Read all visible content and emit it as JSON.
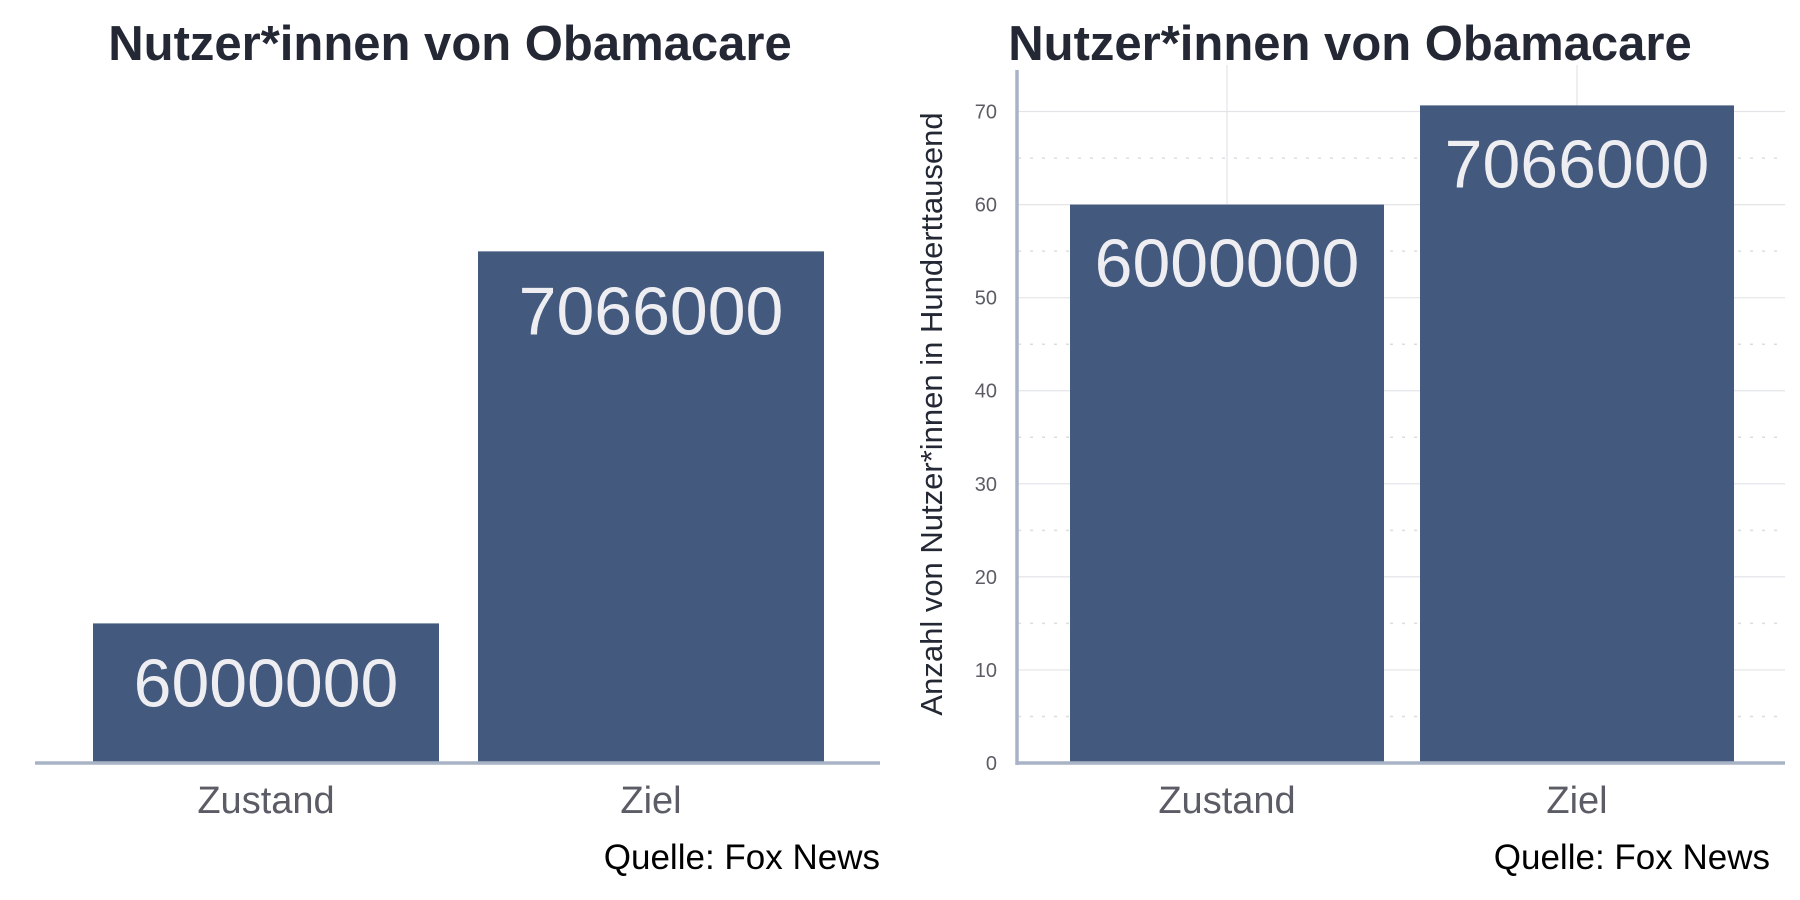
{
  "chart_data": [
    {
      "type": "bar",
      "title": "Nutzer*innen von Obamacare",
      "categories": [
        "Zustand",
        "Ziel"
      ],
      "values": [
        6000000,
        7066000
      ],
      "data_labels": [
        "6000000",
        "7066000"
      ],
      "ylim": [
        5600000,
        7600000
      ],
      "ylabel": "",
      "y_axis_shown": false,
      "grid": false,
      "source": "Quelle: Fox News",
      "bar_color": "#435a7e",
      "label_color": "#eeeef2",
      "baseline_color": "#a9b3c6",
      "tick_color": "#5c5c66"
    },
    {
      "type": "bar",
      "title": "Nutzer*innen von Obamacare",
      "categories": [
        "Zustand",
        "Ziel"
      ],
      "values": [
        60,
        70.66
      ],
      "data_labels": [
        "6000000",
        "7066000"
      ],
      "ylim": [
        0,
        75
      ],
      "yticks": [
        0,
        10,
        20,
        30,
        40,
        50,
        60,
        70
      ],
      "ylabel": "Anzahl von Nutzer*innen in Hunderttausend",
      "y_axis_shown": true,
      "grid": true,
      "source": "Quelle: Fox News",
      "bar_color": "#435a7e",
      "label_color": "#eeeef2",
      "baseline_color": "#a9b3c6",
      "tick_color": "#5c5c66"
    }
  ]
}
